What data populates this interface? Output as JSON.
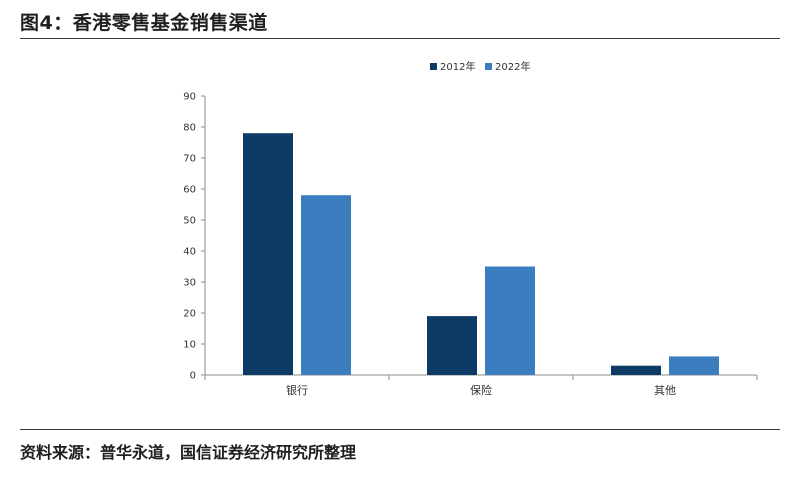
{
  "title": "图4：香港零售基金销售渠道",
  "source": "资料来源：普华永道，国信证券经济研究所整理",
  "chart_data": {
    "type": "bar",
    "title": "",
    "xlabel": "",
    "ylabel": "",
    "categories": [
      "银行",
      "保险",
      "其他"
    ],
    "series": [
      {
        "name": "2012年",
        "color": "#0d3b66",
        "values": [
          78,
          19,
          3
        ]
      },
      {
        "name": "2022年",
        "color": "#3a7ebf",
        "values": [
          58,
          35,
          6
        ]
      }
    ],
    "ylim": [
      0,
      90
    ],
    "yticks": [
      0,
      10,
      20,
      30,
      40,
      50,
      60,
      70,
      80,
      90
    ],
    "grid": false,
    "legend_position": "top-right"
  }
}
